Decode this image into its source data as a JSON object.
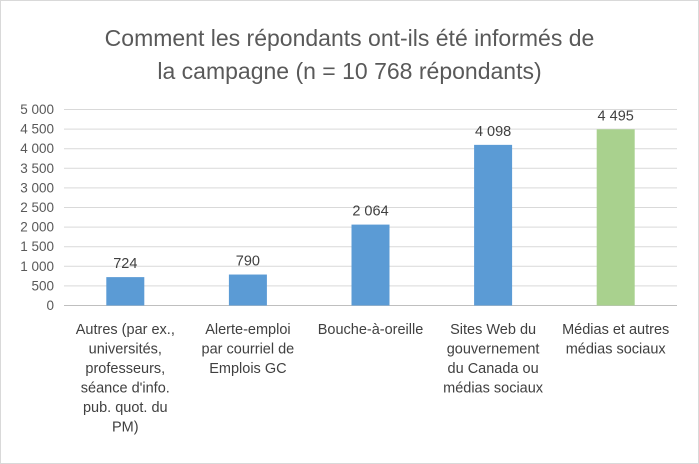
{
  "chart_data": {
    "type": "bar",
    "title_lines": [
      "Comment les répondants ont-ils été informés de",
      "la campagne (n = 10 768 répondants)"
    ],
    "categories": [
      [
        "Autres (par ex.,",
        "universités,",
        "professeurs,",
        "séance d'info.",
        "pub. quot. du",
        "PM)"
      ],
      [
        "Alerte-emploi",
        "par courriel de",
        "Emplois GC"
      ],
      [
        "Bouche-à-oreille"
      ],
      [
        "Sites Web du",
        "gouvernement",
        "du Canada ou",
        "médias sociaux"
      ],
      [
        "Médias et autres",
        "médias sociaux"
      ]
    ],
    "values": [
      724,
      790,
      2064,
      4098,
      4495
    ],
    "value_labels": [
      "724",
      "790",
      "2 064",
      "4 098",
      "4 495"
    ],
    "bar_colors": [
      "#5b9bd5",
      "#5b9bd5",
      "#5b9bd5",
      "#5b9bd5",
      "#a9d18e"
    ],
    "y_ticks": [
      0,
      500,
      1000,
      1500,
      2000,
      2500,
      3000,
      3500,
      4000,
      4500,
      5000
    ],
    "y_tick_labels": [
      "0",
      "500",
      "1 000",
      "1 500",
      "2 000",
      "2 500",
      "3 000",
      "3 500",
      "4 000",
      "4 500",
      "5 000"
    ],
    "ylim": [
      0,
      5000
    ],
    "grid": true,
    "legend": "none"
  }
}
